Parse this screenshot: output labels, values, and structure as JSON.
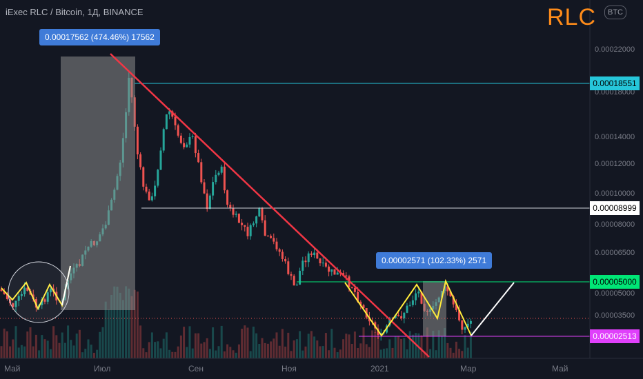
{
  "header": {
    "title": "iExec RLC / Bitcoin, 1Д, BINANCE",
    "ticker": "RLC",
    "currency_badge": "BTC"
  },
  "callouts": {
    "first_move": "0.00017562 (474.46%) 17562",
    "second_move": "0.00002571 (102.33%) 2571"
  },
  "chart_data": {
    "type": "candlestick",
    "symbol": "RLC/BTC",
    "timeframe": "1D",
    "y_scale": "log",
    "ylim": [
      2.3e-05,
      0.00026
    ],
    "x_ticks": [
      "Май",
      "Июл",
      "Сен",
      "Ноя",
      "2021",
      "Мар",
      "Май"
    ],
    "y_ticks": [
      "0.00022000",
      "0.00018000",
      "0.00014000",
      "0.00012000",
      "0.00010000",
      "0.00008000",
      "0.00006500",
      "0.00005000",
      "0.00003500"
    ],
    "price_levels": [
      {
        "value": "0.00018551",
        "color": "#26c6da"
      },
      {
        "value": "0.00008999",
        "color": "#ffffff"
      },
      {
        "value": "0.00005000",
        "color": "#00e676"
      },
      {
        "value": "0.00002513",
        "color": "#e040fb"
      }
    ],
    "measure_ranges": [
      {
        "label": "0.00017562 (474.46%) 17562",
        "change_pct": 474.46
      },
      {
        "label": "0.00002571 (102.33%) 2571",
        "change_pct": 102.33
      }
    ],
    "drawings": [
      "downtrend line",
      "W pattern",
      "projection arrow"
    ],
    "colors": {
      "up": "#26a69a",
      "down": "#ef5350",
      "trendline": "#f23645",
      "pattern": "#ffeb3b",
      "projection": "#ffffff"
    }
  }
}
